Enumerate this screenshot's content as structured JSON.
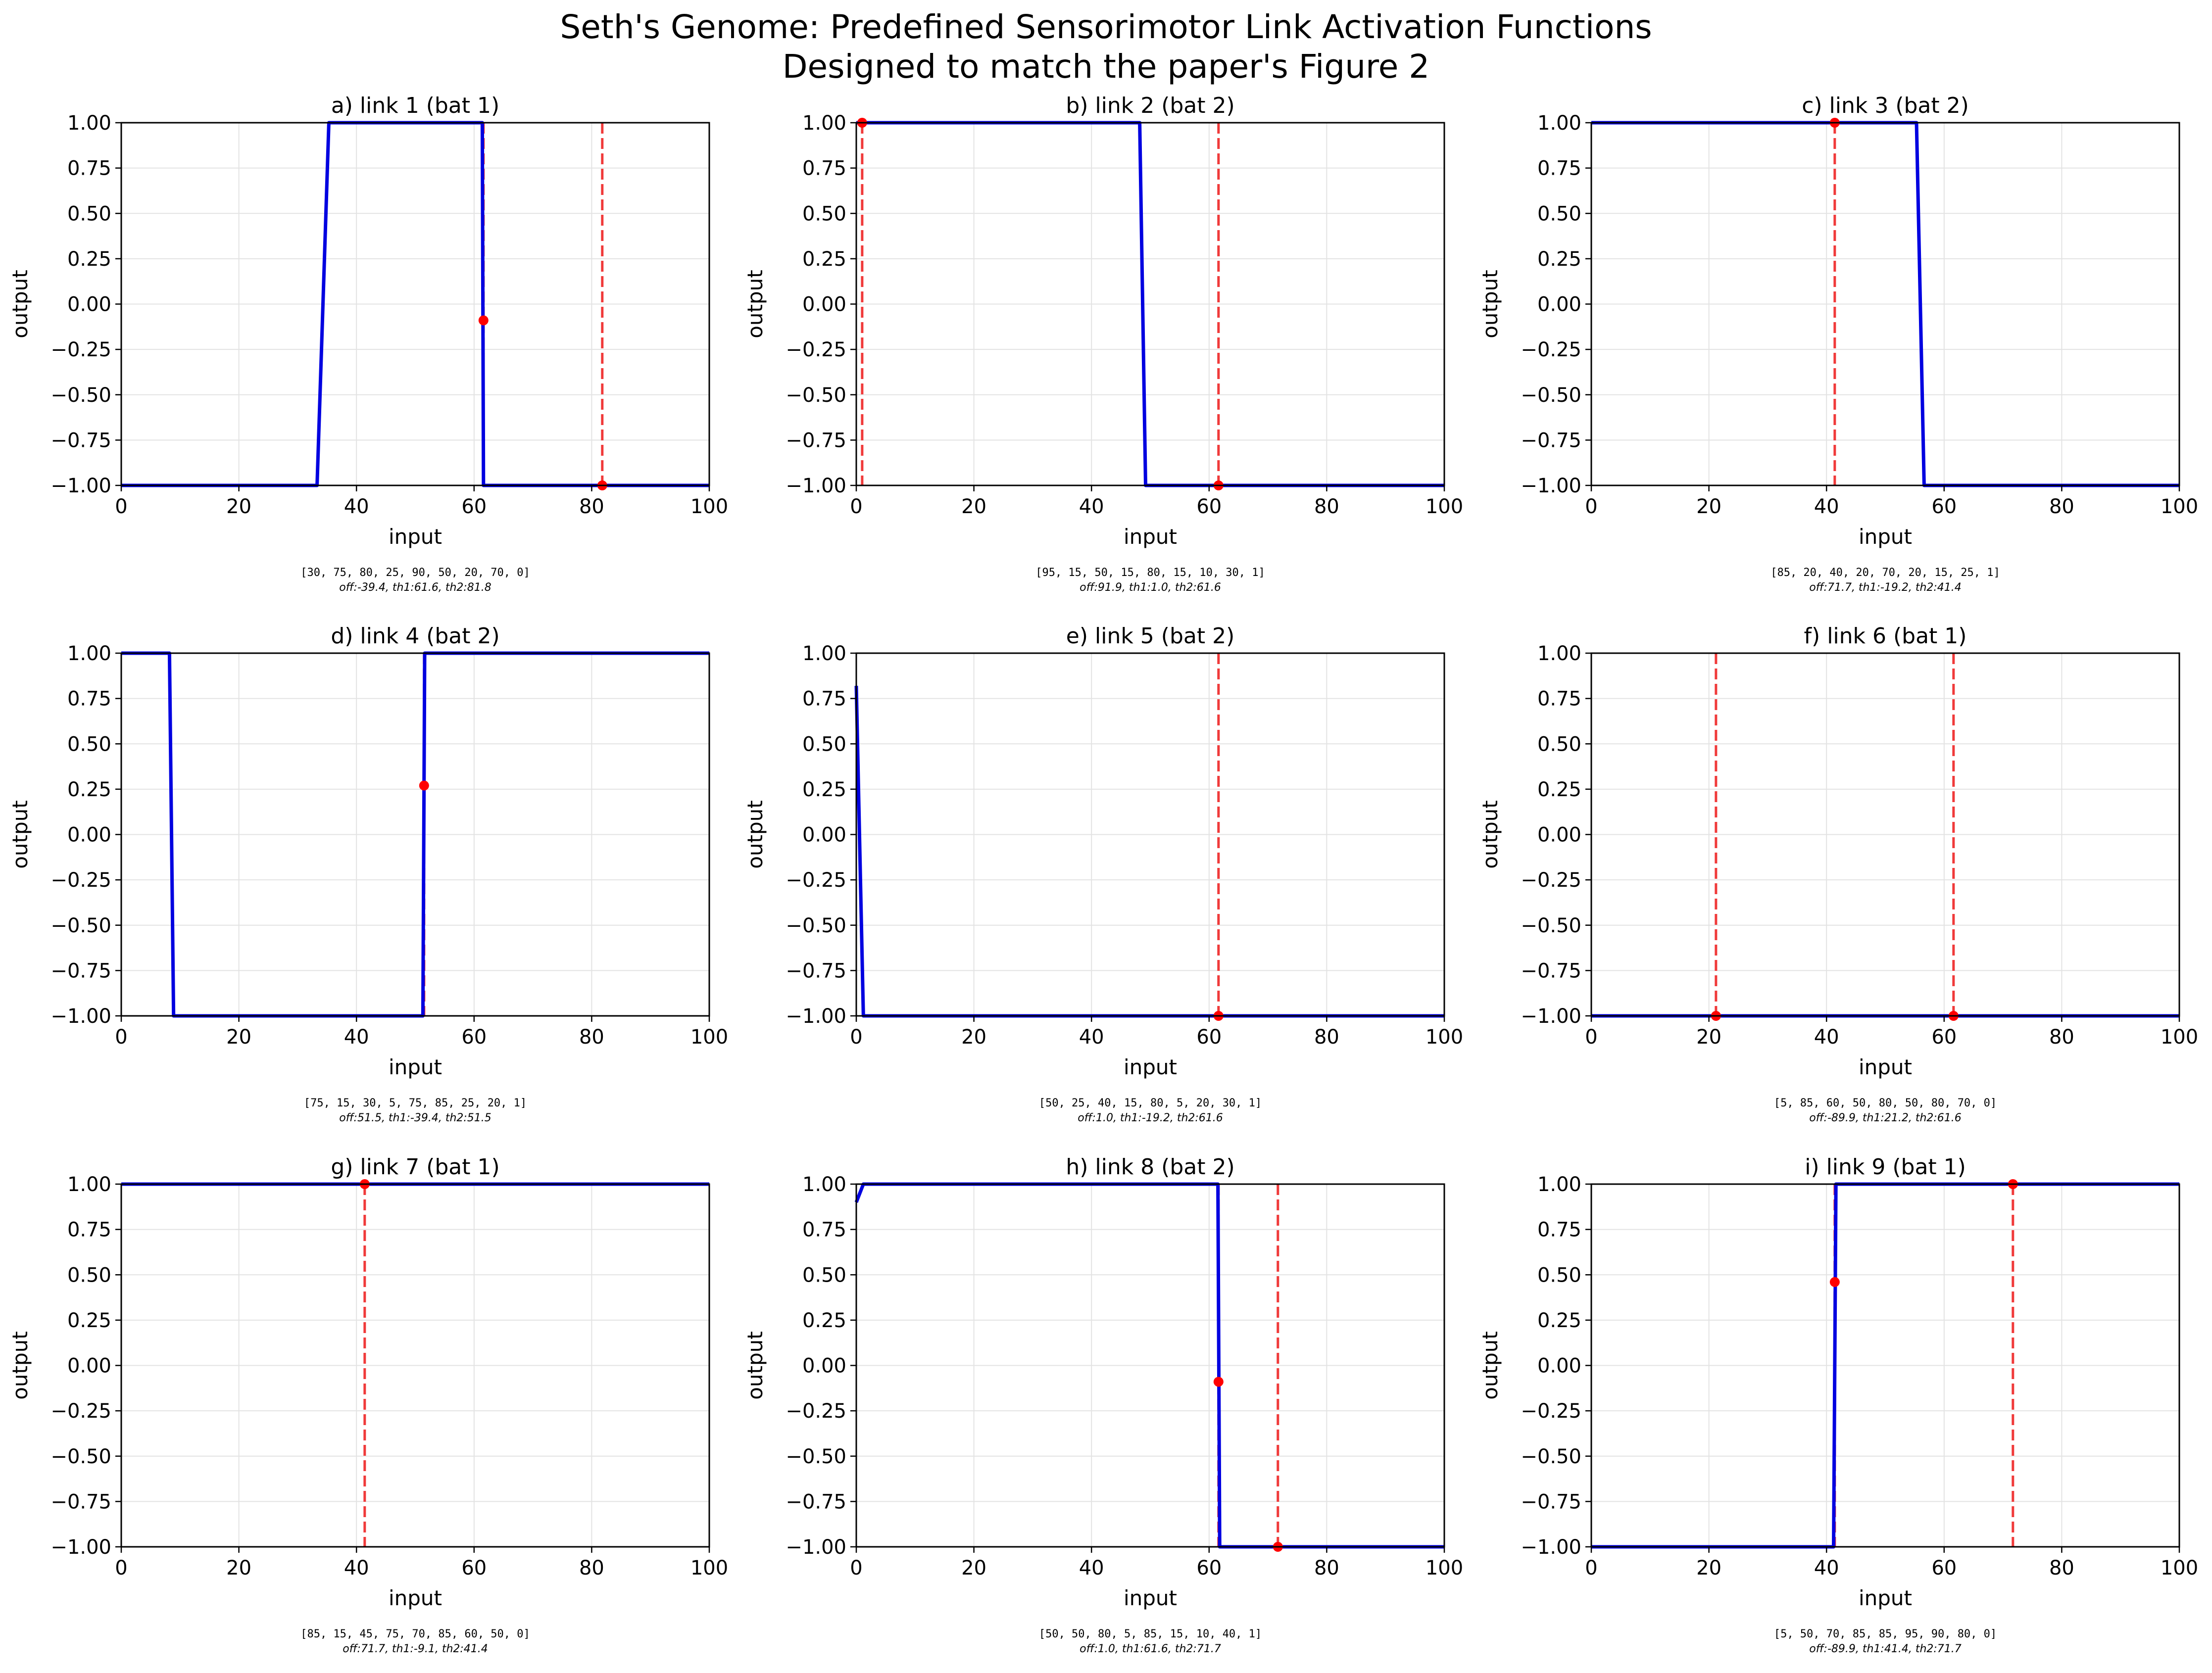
{
  "figure": {
    "title_line1": "Seth's Genome: Predefined Sensorimotor Link Activation Functions",
    "title_line2": "Designed to match the paper's Figure 2"
  },
  "colors": {
    "curve": "#0000e0",
    "threshold": "#f03a3a",
    "marker": "#ff0000",
    "grid": "#e3e3e3",
    "axis": "#000000"
  },
  "chart_data": [
    {
      "type": "line",
      "title": "a) link 1 (bat 1)",
      "xlabel": "input",
      "ylabel": "output",
      "xlim": [
        0,
        100
      ],
      "ylim": [
        -1,
        1
      ],
      "grid": true,
      "xticks": [
        "0",
        "20",
        "40",
        "60",
        "80",
        "100"
      ],
      "yticks": [
        "1.00",
        "0.75",
        "0.50",
        "0.25",
        "0.00",
        "−0.25",
        "−0.50",
        "−0.75",
        "−1.00"
      ],
      "series": [
        {
          "x": [
            0,
            33.3,
            35.3,
            61.4,
            61.6,
            100
          ],
          "y": [
            -1,
            -1,
            1,
            1,
            -1,
            -1
          ]
        }
      ],
      "thresholds": [
        61.6,
        81.8
      ],
      "markers": [
        [
          61.6,
          -0.09
        ],
        [
          81.8,
          -1.0
        ]
      ],
      "params": "[30, 75, 80, 25, 90, 50, 20, 70, 0]",
      "thresholds_text": "off:-39.4, th1:61.6, th2:81.8"
    },
    {
      "type": "line",
      "title": "b) link 2 (bat 2)",
      "xlabel": "input",
      "ylabel": "output",
      "xlim": [
        0,
        100
      ],
      "ylim": [
        -1,
        1
      ],
      "grid": true,
      "xticks": [
        "0",
        "20",
        "40",
        "60",
        "80",
        "100"
      ],
      "yticks": [
        "1.00",
        "0.75",
        "0.50",
        "0.25",
        "0.00",
        "−0.25",
        "−0.50",
        "−0.75",
        "−1.00"
      ],
      "series": [
        {
          "x": [
            0,
            48.2,
            49.2,
            100
          ],
          "y": [
            1,
            1,
            -1,
            -1
          ]
        }
      ],
      "thresholds": [
        1.0,
        61.6
      ],
      "markers": [
        [
          1.0,
          1.0
        ],
        [
          61.6,
          -1.0
        ]
      ],
      "params": "[95, 15, 50, 15, 80, 15, 10, 30, 1]",
      "thresholds_text": "off:91.9, th1:1.0, th2:61.6"
    },
    {
      "type": "line",
      "title": "c) link 3 (bat 2)",
      "xlabel": "input",
      "ylabel": "output",
      "xlim": [
        0,
        100
      ],
      "ylim": [
        -1,
        1
      ],
      "grid": true,
      "xticks": [
        "0",
        "20",
        "40",
        "60",
        "80",
        "100"
      ],
      "yticks": [
        "1.00",
        "0.75",
        "0.50",
        "0.25",
        "0.00",
        "−0.25",
        "−0.50",
        "−0.75",
        "−1.00"
      ],
      "series": [
        {
          "x": [
            0,
            55.3,
            56.6,
            100
          ],
          "y": [
            1,
            1,
            -1,
            -1
          ]
        }
      ],
      "thresholds": [
        41.4
      ],
      "markers": [
        [
          41.4,
          1.0
        ]
      ],
      "params": "[85, 20, 40, 20, 70, 20, 15, 25, 1]",
      "thresholds_text": "off:71.7, th1:-19.2, th2:41.4"
    },
    {
      "type": "line",
      "title": "d) link 4 (bat 2)",
      "xlabel": "input",
      "ylabel": "output",
      "xlim": [
        0,
        100
      ],
      "ylim": [
        -1,
        1
      ],
      "grid": true,
      "xticks": [
        "0",
        "20",
        "40",
        "60",
        "80",
        "100"
      ],
      "yticks": [
        "1.00",
        "0.75",
        "0.50",
        "0.25",
        "0.00",
        "−0.25",
        "−0.50",
        "−0.75",
        "−1.00"
      ],
      "series": [
        {
          "x": [
            0,
            8.2,
            8.9,
            51.3,
            51.6,
            100
          ],
          "y": [
            1,
            1,
            -1,
            -1,
            1,
            1
          ]
        }
      ],
      "thresholds": [
        51.5
      ],
      "markers": [
        [
          51.5,
          0.27
        ]
      ],
      "params": "[75, 15, 30, 5, 75, 85, 25, 20, 1]",
      "thresholds_text": "off:51.5, th1:-39.4, th2:51.5"
    },
    {
      "type": "line",
      "title": "e) link 5 (bat 2)",
      "xlabel": "input",
      "ylabel": "output",
      "xlim": [
        0,
        100
      ],
      "ylim": [
        -1,
        1
      ],
      "grid": true,
      "xticks": [
        "0",
        "20",
        "40",
        "60",
        "80",
        "100"
      ],
      "yticks": [
        "1.00",
        "0.75",
        "0.50",
        "0.25",
        "0.00",
        "−0.25",
        "−0.50",
        "−0.75",
        "−1.00"
      ],
      "series": [
        {
          "x": [
            0,
            1.2,
            100
          ],
          "y": [
            0.82,
            -1,
            -1
          ]
        }
      ],
      "thresholds": [
        61.6
      ],
      "markers": [
        [
          61.6,
          -1.0
        ]
      ],
      "params": "[50, 25, 40, 15, 80, 5, 20, 30, 1]",
      "thresholds_text": "off:1.0, th1:-19.2, th2:61.6"
    },
    {
      "type": "line",
      "title": "f) link 6 (bat 1)",
      "xlabel": "input",
      "ylabel": "output",
      "xlim": [
        0,
        100
      ],
      "ylim": [
        -1,
        1
      ],
      "grid": true,
      "xticks": [
        "0",
        "20",
        "40",
        "60",
        "80",
        "100"
      ],
      "yticks": [
        "1.00",
        "0.75",
        "0.50",
        "0.25",
        "0.00",
        "−0.25",
        "−0.50",
        "−0.75",
        "−1.00"
      ],
      "series": [
        {
          "x": [
            0,
            100
          ],
          "y": [
            -1,
            -1
          ]
        }
      ],
      "thresholds": [
        21.2,
        61.6
      ],
      "markers": [
        [
          21.2,
          -1.0
        ],
        [
          61.6,
          -1.0
        ]
      ],
      "params": "[5, 85, 60, 50, 80, 50, 80, 70, 0]",
      "thresholds_text": "off:-89.9, th1:21.2, th2:61.6"
    },
    {
      "type": "line",
      "title": "g) link 7 (bat 1)",
      "xlabel": "input",
      "ylabel": "output",
      "xlim": [
        0,
        100
      ],
      "ylim": [
        -1,
        1
      ],
      "grid": true,
      "xticks": [
        "0",
        "20",
        "40",
        "60",
        "80",
        "100"
      ],
      "yticks": [
        "1.00",
        "0.75",
        "0.50",
        "0.25",
        "0.00",
        "−0.25",
        "−0.50",
        "−0.75",
        "−1.00"
      ],
      "series": [
        {
          "x": [
            0,
            100
          ],
          "y": [
            1,
            1
          ]
        }
      ],
      "thresholds": [
        41.4
      ],
      "markers": [
        [
          41.4,
          1.0
        ]
      ],
      "params": "[85, 15, 45, 75, 70, 85, 60, 50, 0]",
      "thresholds_text": "off:71.7, th1:-9.1, th2:41.4"
    },
    {
      "type": "line",
      "title": "h) link 8 (bat 2)",
      "xlabel": "input",
      "ylabel": "output",
      "xlim": [
        0,
        100
      ],
      "ylim": [
        -1,
        1
      ],
      "grid": true,
      "xticks": [
        "0",
        "20",
        "40",
        "60",
        "80",
        "100"
      ],
      "yticks": [
        "1.00",
        "0.75",
        "0.50",
        "0.25",
        "0.00",
        "−0.25",
        "−0.50",
        "−0.75",
        "−1.00"
      ],
      "series": [
        {
          "x": [
            0,
            1.2,
            61.5,
            61.8,
            100
          ],
          "y": [
            0.9,
            1,
            1,
            -1,
            -1
          ]
        }
      ],
      "thresholds": [
        61.6,
        71.7
      ],
      "markers": [
        [
          61.6,
          -0.09
        ],
        [
          71.7,
          -1.0
        ]
      ],
      "params": "[50, 50, 80, 5, 85, 15, 10, 40, 1]",
      "thresholds_text": "off:1.0, th1:61.6, th2:71.7"
    },
    {
      "type": "line",
      "title": "i) link 9 (bat 1)",
      "xlabel": "input",
      "ylabel": "output",
      "xlim": [
        0,
        100
      ],
      "ylim": [
        -1,
        1
      ],
      "grid": true,
      "xticks": [
        "0",
        "20",
        "40",
        "60",
        "80",
        "100"
      ],
      "yticks": [
        "1.00",
        "0.75",
        "0.50",
        "0.25",
        "0.00",
        "−0.25",
        "−0.50",
        "−0.75",
        "−1.00"
      ],
      "series": [
        {
          "x": [
            0,
            41.2,
            41.6,
            100
          ],
          "y": [
            -1,
            -1,
            1,
            1
          ]
        }
      ],
      "thresholds": [
        41.4,
        71.7
      ],
      "markers": [
        [
          41.4,
          0.46
        ],
        [
          71.7,
          1.0
        ]
      ],
      "params": "[5, 50, 70, 85, 85, 95, 90, 80, 0]",
      "thresholds_text": "off:-89.9, th1:41.4, th2:71.7"
    }
  ]
}
